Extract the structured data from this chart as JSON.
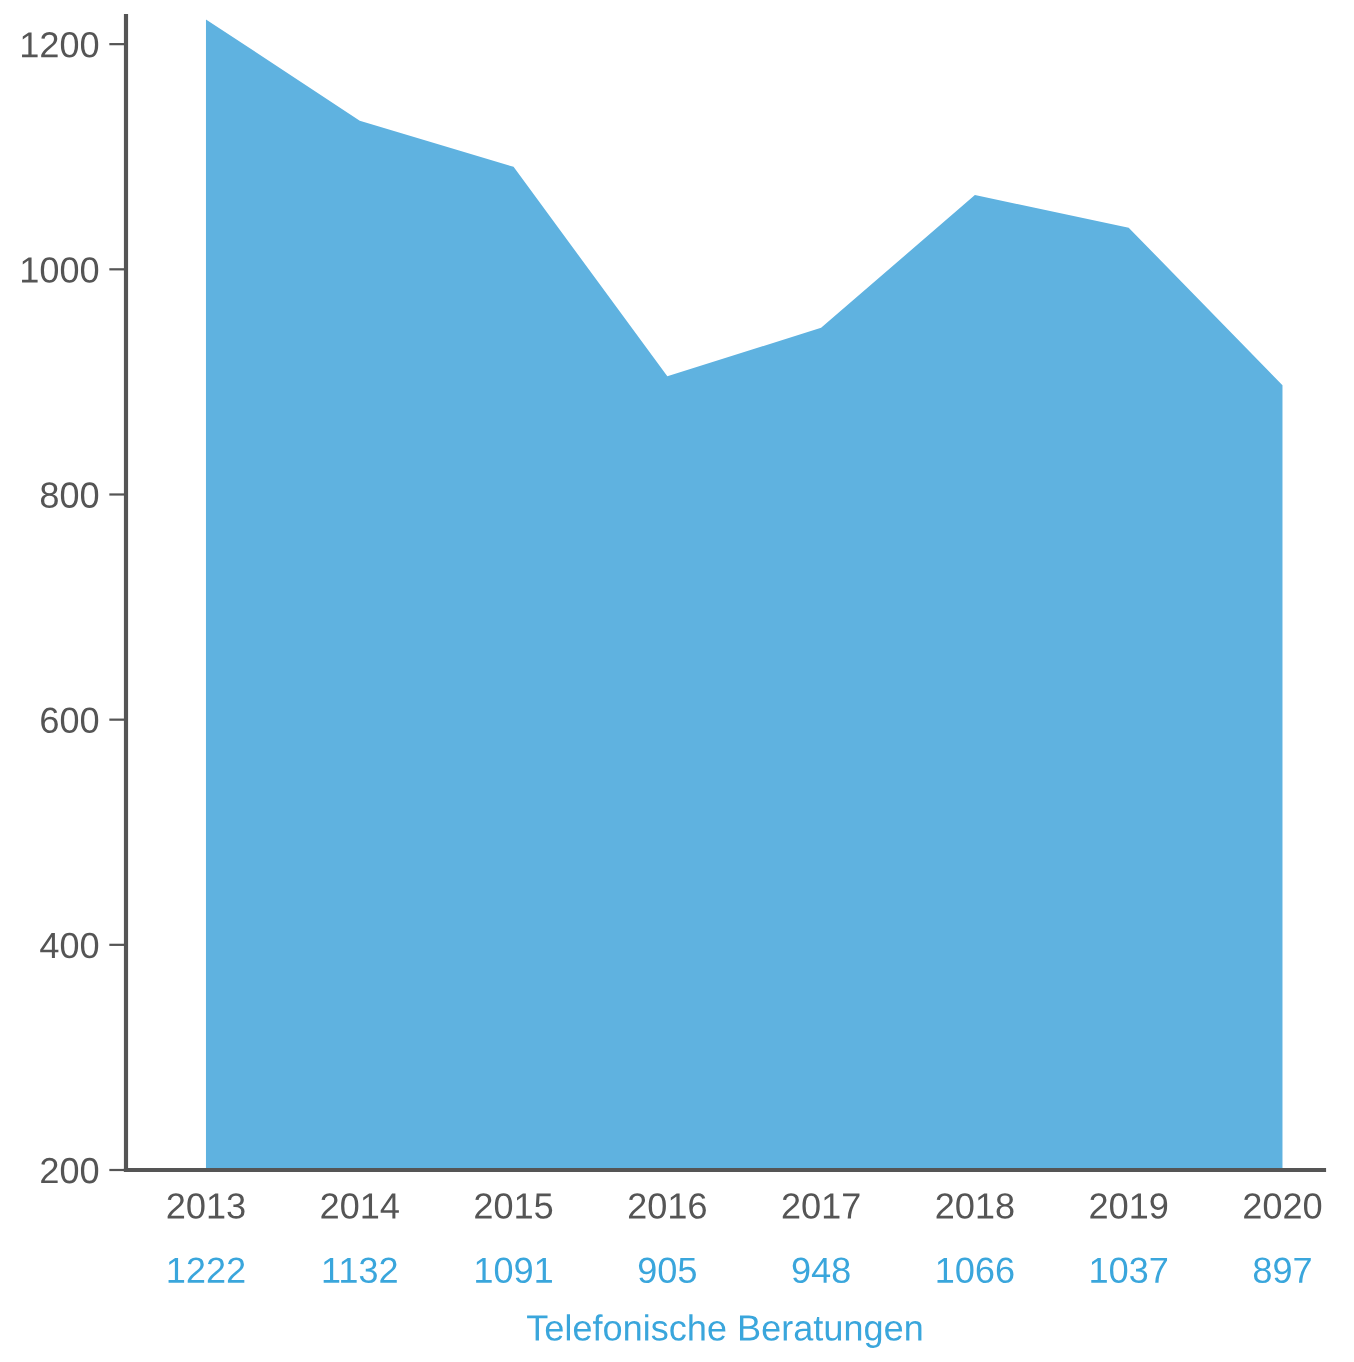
{
  "chart_data": {
    "type": "area",
    "xlabel": "Telefonische Beratungen",
    "categories": [
      "2013",
      "2014",
      "2015",
      "2016",
      "2017",
      "2018",
      "2019",
      "2020"
    ],
    "values": [
      1222,
      1132,
      1091,
      905,
      948,
      1066,
      1037,
      897
    ],
    "color": "#5fb2e0",
    "data_labels": true,
    "ylim": [
      200,
      1225
    ],
    "yticks": [
      200,
      400,
      600,
      800,
      1000,
      1200
    ],
    "grid": false,
    "legend": false
  }
}
